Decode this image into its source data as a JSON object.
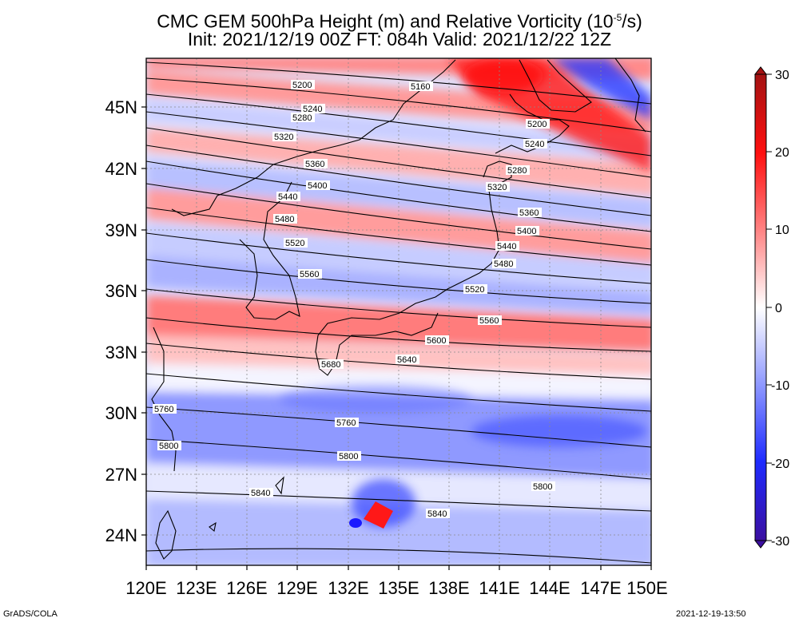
{
  "title": {
    "line1_main": "CMC GEM 500hPa Height (m) and Relative Vorticity (10",
    "line1_exp": "-5",
    "line1_end": "/s)",
    "line2": "Init: 2021/12/19 00Z  FT: 084h  Valid: 2021/12/22 12Z"
  },
  "map": {
    "lon_labels": [
      "120E",
      "123E",
      "126E",
      "129E",
      "132E",
      "135E",
      "138E",
      "141E",
      "144E",
      "147E",
      "150E"
    ],
    "lat_labels": [
      "24N",
      "27N",
      "30N",
      "33N",
      "36N",
      "39N",
      "42N",
      "45N"
    ]
  },
  "contour_labels": [
    "5200",
    "5160",
    "5240",
    "5280",
    "5320",
    "5200",
    "5360",
    "5240",
    "5400",
    "5280",
    "5440",
    "5320",
    "5480",
    "5360",
    "5520",
    "5400",
    "5440",
    "5560",
    "5480",
    "5520",
    "5600",
    "5560",
    "5680",
    "5640",
    "5760",
    "5760",
    "5800",
    "5800",
    "5800",
    "5840",
    "5840"
  ],
  "colorbar": {
    "ticks": [
      "30",
      "20",
      "10",
      "0",
      "-10",
      "-20",
      "-30"
    ],
    "colors": {
      "max": "#a31212",
      "strong_pos": "#ff0000",
      "pos": "#ff9a9a",
      "zero": "#ffffff",
      "neg": "#9fa8ff",
      "strong_neg": "#1e2bff",
      "min": "#3b0fa0"
    }
  },
  "footer": {
    "left": "GrADS/COLA",
    "right": "2021-12-19-13:50"
  }
}
